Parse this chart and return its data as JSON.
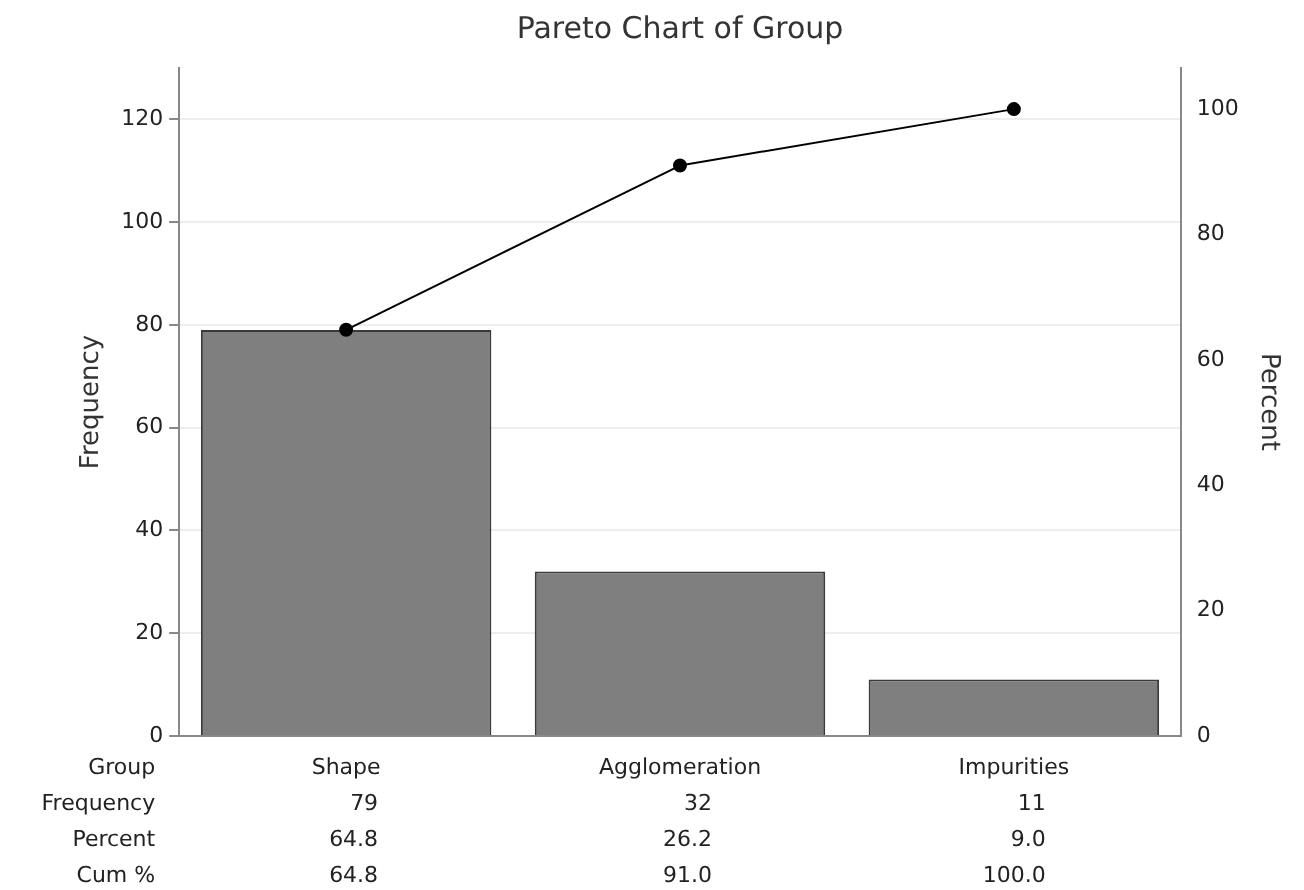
{
  "chart_data": {
    "type": "bar",
    "title": "Pareto Chart of Group",
    "xlabel": "Group",
    "ylabel": "Frequency",
    "y2label": "Percent",
    "categories": [
      "Shape",
      "Agglomeration",
      "Impurities"
    ],
    "series": [
      {
        "color": "#7f7f7f",
        "values": [
          79,
          32,
          11
        ],
        "value_labels": [
          "79",
          "32",
          "11"
        ]
      },
      {
        "type": "line",
        "axis": "y2",
        "color": "#000000",
        "values": [
          64.8,
          91.0,
          100.0
        ],
        "value_labels": [
          "64.8",
          "91.0",
          "100.0"
        ],
        "marker": "circle"
      }
    ],
    "annotations": [
      "Frequency",
      "Percent",
      "Cum %",
      "64.8",
      "26.2",
      "9.0"
    ],
    "ylim": [
      0,
      130
    ],
    "yticks": [
      0,
      20,
      40,
      60,
      80,
      100,
      120
    ],
    "y2lim": [
      0,
      106.56
    ],
    "y2ticks": [
      0,
      20,
      40,
      60,
      80,
      100
    ],
    "grid": "y",
    "legend": false
  }
}
